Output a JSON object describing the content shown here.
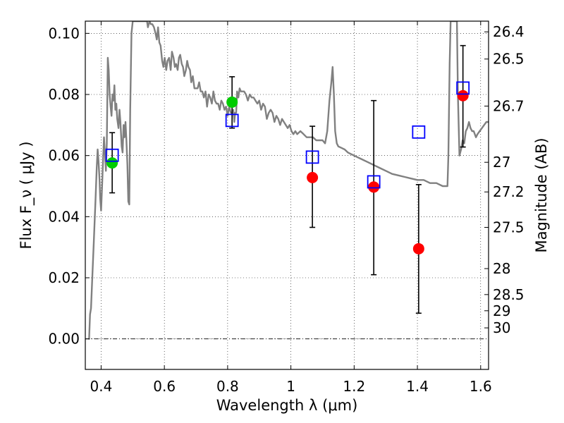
{
  "chart_data": {
    "type": "scatter",
    "xlabel": "Wavelength  λ (μm)",
    "ylabel": "Flux  F_ν  ( μJy )",
    "ylabel_right": "Magnitude (AB)",
    "xlim": [
      0.35,
      1.625
    ],
    "ylim": [
      -0.01,
      0.104
    ],
    "x_ticks": [
      0.4,
      0.6,
      0.8,
      1.0,
      1.2,
      1.4,
      1.6
    ],
    "x_tick_labels": [
      "0.4",
      "0.6",
      "0.8",
      "1",
      "1.2",
      "1.4",
      "1.6"
    ],
    "y_ticks": [
      0.0,
      0.02,
      0.04,
      0.06,
      0.08,
      0.1
    ],
    "y_tick_labels": [
      "0.00",
      "0.02",
      "0.04",
      "0.06",
      "0.08",
      "0.10"
    ],
    "right_ticks": [
      {
        "label": "26.4",
        "flux": 0.1005
      },
      {
        "label": "26.5",
        "flux": 0.0916
      },
      {
        "label": "26.7",
        "flux": 0.0762
      },
      {
        "label": "27",
        "flux": 0.0578
      },
      {
        "label": "27.2",
        "flux": 0.0481
      },
      {
        "label": "27.5",
        "flux": 0.0365
      },
      {
        "label": "28",
        "flux": 0.023
      },
      {
        "label": "28.5",
        "flux": 0.0145
      },
      {
        "label": "29",
        "flux": 0.0092
      },
      {
        "label": "30",
        "flux": 0.0036
      }
    ],
    "grid": true,
    "colors": {
      "model_line": "#808080",
      "model_points": "#0000ff",
      "observed_red": "#ff0000",
      "observed_green": "#00cc00",
      "errorbar": "#000000",
      "zero_line": "#000000"
    },
    "series": [
      {
        "kind": "line",
        "points": [
          [
            0.36,
            0.0
          ],
          [
            0.362,
            0.0
          ],
          [
            0.365,
            0.008
          ],
          [
            0.368,
            0.01
          ],
          [
            0.372,
            0.02
          ],
          [
            0.377,
            0.032
          ],
          [
            0.382,
            0.045
          ],
          [
            0.386,
            0.056
          ],
          [
            0.389,
            0.062
          ],
          [
            0.392,
            0.058
          ],
          [
            0.395,
            0.052
          ],
          [
            0.397,
            0.046
          ],
          [
            0.4,
            0.042
          ],
          [
            0.403,
            0.05
          ],
          [
            0.406,
            0.058
          ],
          [
            0.409,
            0.066
          ],
          [
            0.412,
            0.061
          ],
          [
            0.415,
            0.055
          ],
          [
            0.418,
            0.064
          ],
          [
            0.421,
            0.092
          ],
          [
            0.424,
            0.088
          ],
          [
            0.427,
            0.08
          ],
          [
            0.43,
            0.076
          ],
          [
            0.433,
            0.073
          ],
          [
            0.436,
            0.08
          ],
          [
            0.439,
            0.078
          ],
          [
            0.442,
            0.083
          ],
          [
            0.445,
            0.075
          ],
          [
            0.448,
            0.077
          ],
          [
            0.451,
            0.072
          ],
          [
            0.455,
            0.069
          ],
          [
            0.458,
            0.075
          ],
          [
            0.461,
            0.071
          ],
          [
            0.465,
            0.063
          ],
          [
            0.468,
            0.061
          ],
          [
            0.471,
            0.07
          ],
          [
            0.474,
            0.066
          ],
          [
            0.477,
            0.071
          ],
          [
            0.48,
            0.065
          ],
          [
            0.483,
            0.057
          ],
          [
            0.486,
            0.045
          ],
          [
            0.489,
            0.044
          ],
          [
            0.492,
            0.075
          ],
          [
            0.496,
            0.1
          ],
          [
            0.5,
            0.104
          ],
          [
            0.505,
            0.104
          ],
          [
            0.545,
            0.104
          ],
          [
            0.548,
            0.102
          ],
          [
            0.553,
            0.104
          ],
          [
            0.557,
            0.103
          ],
          [
            0.562,
            0.103
          ],
          [
            0.567,
            0.102
          ],
          [
            0.572,
            0.1
          ],
          [
            0.576,
            0.098
          ],
          [
            0.58,
            0.102
          ],
          [
            0.584,
            0.097
          ],
          [
            0.588,
            0.096
          ],
          [
            0.593,
            0.091
          ],
          [
            0.597,
            0.089
          ],
          [
            0.601,
            0.092
          ],
          [
            0.606,
            0.088
          ],
          [
            0.61,
            0.091
          ],
          [
            0.615,
            0.092
          ],
          [
            0.62,
            0.088
          ],
          [
            0.624,
            0.094
          ],
          [
            0.629,
            0.092
          ],
          [
            0.633,
            0.089
          ],
          [
            0.637,
            0.09
          ],
          [
            0.642,
            0.088
          ],
          [
            0.646,
            0.092
          ],
          [
            0.65,
            0.093
          ],
          [
            0.655,
            0.09
          ],
          [
            0.659,
            0.089
          ],
          [
            0.663,
            0.086
          ],
          [
            0.668,
            0.088
          ],
          [
            0.672,
            0.091
          ],
          [
            0.676,
            0.089
          ],
          [
            0.681,
            0.088
          ],
          [
            0.685,
            0.084
          ],
          [
            0.69,
            0.086
          ],
          [
            0.695,
            0.082
          ],
          [
            0.7,
            0.082
          ],
          [
            0.705,
            0.082
          ],
          [
            0.71,
            0.084
          ],
          [
            0.715,
            0.081
          ],
          [
            0.72,
            0.081
          ],
          [
            0.725,
            0.079
          ],
          [
            0.73,
            0.081
          ],
          [
            0.735,
            0.076
          ],
          [
            0.74,
            0.08
          ],
          [
            0.745,
            0.079
          ],
          [
            0.75,
            0.077
          ],
          [
            0.755,
            0.081
          ],
          [
            0.76,
            0.078
          ],
          [
            0.765,
            0.077
          ],
          [
            0.77,
            0.077
          ],
          [
            0.775,
            0.075
          ],
          [
            0.78,
            0.078
          ],
          [
            0.785,
            0.077
          ],
          [
            0.79,
            0.075
          ],
          [
            0.795,
            0.076
          ],
          [
            0.8,
            0.073
          ],
          [
            0.805,
            0.076
          ],
          [
            0.81,
            0.074
          ],
          [
            0.815,
            0.074
          ],
          [
            0.818,
            0.075
          ],
          [
            0.821,
            0.071
          ],
          [
            0.824,
            0.074
          ],
          [
            0.827,
            0.074
          ],
          [
            0.83,
            0.081
          ],
          [
            0.834,
            0.079
          ],
          [
            0.838,
            0.082
          ],
          [
            0.842,
            0.081
          ],
          [
            0.846,
            0.081
          ],
          [
            0.852,
            0.081
          ],
          [
            0.858,
            0.08
          ],
          [
            0.864,
            0.078
          ],
          [
            0.87,
            0.08
          ],
          [
            0.876,
            0.079
          ],
          [
            0.882,
            0.079
          ],
          [
            0.888,
            0.078
          ],
          [
            0.894,
            0.077
          ],
          [
            0.9,
            0.078
          ],
          [
            0.906,
            0.075
          ],
          [
            0.912,
            0.077
          ],
          [
            0.918,
            0.076
          ],
          [
            0.924,
            0.072
          ],
          [
            0.93,
            0.074
          ],
          [
            0.936,
            0.075
          ],
          [
            0.942,
            0.074
          ],
          [
            0.948,
            0.071
          ],
          [
            0.954,
            0.073
          ],
          [
            0.96,
            0.072
          ],
          [
            0.966,
            0.07
          ],
          [
            0.972,
            0.072
          ],
          [
            0.978,
            0.071
          ],
          [
            0.984,
            0.07
          ],
          [
            0.99,
            0.069
          ],
          [
            0.996,
            0.07
          ],
          [
            1.002,
            0.068
          ],
          [
            1.008,
            0.067
          ],
          [
            1.014,
            0.068
          ],
          [
            1.02,
            0.067
          ],
          [
            1.03,
            0.068
          ],
          [
            1.04,
            0.067
          ],
          [
            1.05,
            0.066
          ],
          [
            1.06,
            0.066
          ],
          [
            1.07,
            0.066
          ],
          [
            1.08,
            0.065
          ],
          [
            1.09,
            0.065
          ],
          [
            1.1,
            0.065
          ],
          [
            1.108,
            0.064
          ],
          [
            1.115,
            0.068
          ],
          [
            1.122,
            0.078
          ],
          [
            1.128,
            0.084
          ],
          [
            1.132,
            0.089
          ],
          [
            1.136,
            0.08
          ],
          [
            1.14,
            0.068
          ],
          [
            1.145,
            0.064
          ],
          [
            1.15,
            0.063
          ],
          [
            1.16,
            0.0625
          ],
          [
            1.17,
            0.062
          ],
          [
            1.18,
            0.061
          ],
          [
            1.2,
            0.06
          ],
          [
            1.22,
            0.059
          ],
          [
            1.24,
            0.058
          ],
          [
            1.26,
            0.057
          ],
          [
            1.28,
            0.056
          ],
          [
            1.3,
            0.055
          ],
          [
            1.32,
            0.054
          ],
          [
            1.34,
            0.0535
          ],
          [
            1.36,
            0.053
          ],
          [
            1.38,
            0.0525
          ],
          [
            1.4,
            0.052
          ],
          [
            1.42,
            0.052
          ],
          [
            1.44,
            0.051
          ],
          [
            1.46,
            0.051
          ],
          [
            1.48,
            0.05
          ],
          [
            1.495,
            0.05
          ],
          [
            1.498,
            0.06
          ],
          [
            1.502,
            0.09
          ],
          [
            1.505,
            0.104
          ],
          [
            1.525,
            0.104
          ],
          [
            1.528,
            0.08
          ],
          [
            1.533,
            0.06
          ],
          [
            1.538,
            0.062
          ],
          [
            1.543,
            0.065
          ],
          [
            1.548,
            0.064
          ],
          [
            1.553,
            0.068
          ],
          [
            1.558,
            0.069
          ],
          [
            1.563,
            0.071
          ],
          [
            1.568,
            0.069
          ],
          [
            1.573,
            0.068
          ],
          [
            1.578,
            0.068
          ],
          [
            1.585,
            0.066
          ],
          [
            1.59,
            0.067
          ],
          [
            1.597,
            0.068
          ],
          [
            1.604,
            0.069
          ],
          [
            1.611,
            0.07
          ],
          [
            1.618,
            0.071
          ],
          [
            1.625,
            0.071
          ]
        ]
      },
      {
        "kind": "model_points",
        "points": [
          {
            "x": 0.435,
            "y": 0.0601
          },
          {
            "x": 0.814,
            "y": 0.0715
          },
          {
            "x": 1.068,
            "y": 0.0595
          },
          {
            "x": 1.262,
            "y": 0.0514
          },
          {
            "x": 1.404,
            "y": 0.0677
          },
          {
            "x": 1.544,
            "y": 0.0821
          }
        ]
      },
      {
        "kind": "observed",
        "points": [
          {
            "x": 0.435,
            "y": 0.0576,
            "yerr_low": 0.0478,
            "yerr_high": 0.0675,
            "color": "green"
          },
          {
            "x": 0.814,
            "y": 0.0775,
            "yerr_low": 0.069,
            "yerr_high": 0.0858,
            "color": "green"
          },
          {
            "x": 1.068,
            "y": 0.0528,
            "yerr_low": 0.0365,
            "yerr_high": 0.0696,
            "color": "red"
          },
          {
            "x": 1.262,
            "y": 0.0497,
            "yerr_low": 0.021,
            "yerr_high": 0.078,
            "color": "red"
          },
          {
            "x": 1.404,
            "y": 0.0295,
            "yerr_low": 0.0084,
            "yerr_high": 0.0505,
            "color": "red"
          },
          {
            "x": 1.544,
            "y": 0.0796,
            "yerr_low": 0.0628,
            "yerr_high": 0.096,
            "color": "red"
          }
        ]
      }
    ]
  }
}
